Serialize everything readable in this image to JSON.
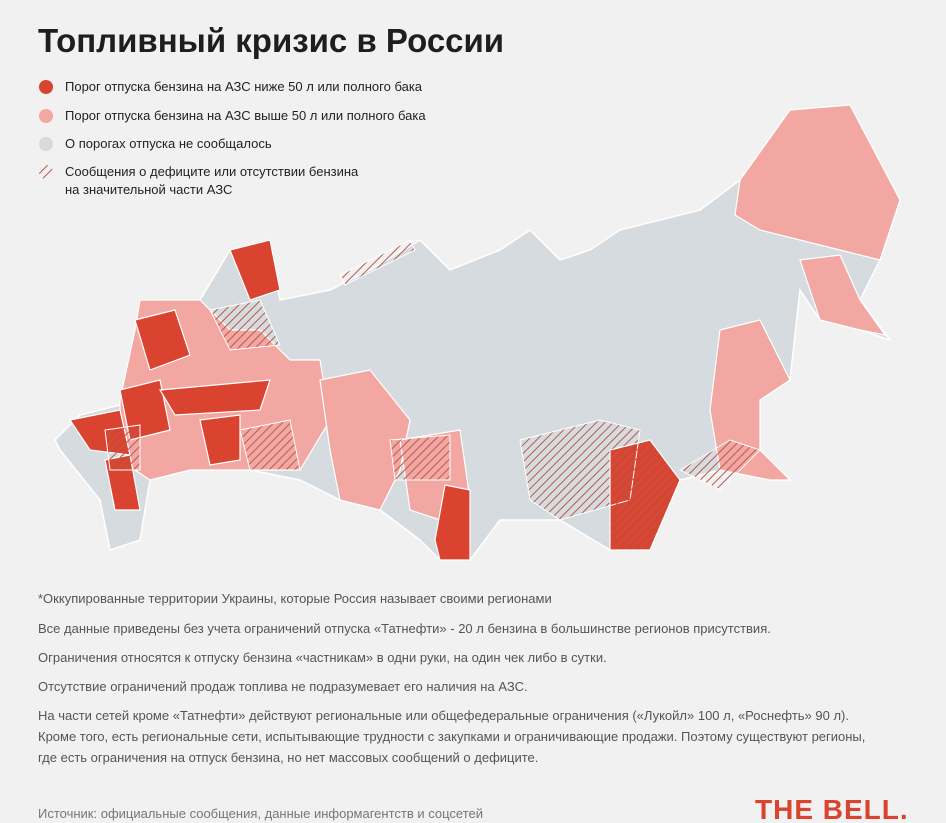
{
  "title": "Топливный кризис в России",
  "legend": [
    "Порог отпуска бензина на АЗС ниже 50 л или полного бака",
    "Порог отпуска бензина на АЗС выше 50 л или полного бака",
    "О порогах отпуска не сообщалось",
    "Сообщения о дефиците или отсутствии бензина на значительной части АЗС"
  ],
  "notes": [
    "*Оккупированные территории Украины, которые Россия называет своими регионами",
    "Все данные приведены без учета ограничений отпуска «Татнефти» - 20 л бензина в большинстве регионов присутствия.",
    "Ограничения относятся к отпуску бензина «частникам» в одни руки, на один чек либо в сутки.",
    "Отсутствие ограничений продаж топлива не подразумевает его наличия на АЗС.",
    "На части сетей кроме «Татнефти» действуют региональные или общефедеральные ограничения («Лукойл» 100 л, «Роснефть» 90 л). Кроме того, есть региональные сети, испытывающие трудности с закупками и ограничивающие продажи. Поэтому существуют регионы, где есть ограничения на отпуск бензина, но нет массовых сообщений о дефиците."
  ],
  "source": "Источник: официальные сообщения, данные информагентств и соцсетей",
  "logo": "THE BELL."
}
